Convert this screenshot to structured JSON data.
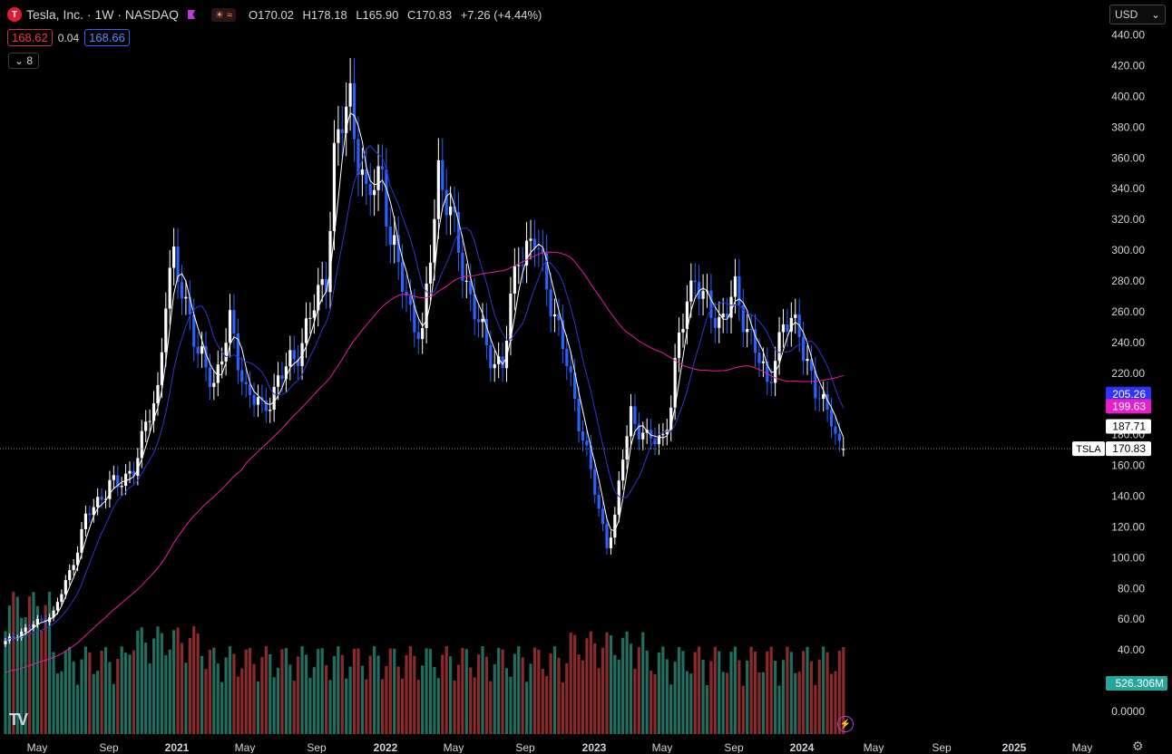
{
  "header": {
    "logo_letter": "T",
    "symbol_title": "Tesla, Inc. · 1W · NASDAQ",
    "indicator_badge": "☀ ≈",
    "ohlc": {
      "o_label": "O",
      "o": "170.02",
      "h_label": "H",
      "h": "178.18",
      "l_label": "L",
      "l": "165.90",
      "c_label": "C",
      "c": "170.83",
      "change": "+7.26 (+4.44%)"
    }
  },
  "quote": {
    "bid": "168.62",
    "spread": "0.04",
    "ask": "168.66"
  },
  "indicators_toggle": {
    "arrow": "⌄",
    "count": "8"
  },
  "currency_select": {
    "value": "USD",
    "arrow": "⌄"
  },
  "branding": {
    "tv_logo": "TV"
  },
  "icons": {
    "bolt": "bolt-icon",
    "gear": "gear-icon"
  },
  "colors": {
    "bg": "#000000",
    "up": "#ffffff",
    "down": "#2962ff",
    "vol_up": "#1f6e5f",
    "vol_down": "#8b2a2a",
    "ma_fast": "#ffffff",
    "ma_mid": "#2e35d4",
    "ma_long": "#e91e9e",
    "price_line": "#8a8a8a",
    "ma_mid_badge": "#3033ff",
    "ma_long_badge": "#e91ec8",
    "vol_badge": "#26a69a"
  },
  "chart_data": {
    "type": "candlestick",
    "interval": "1W",
    "ylim": [
      -10,
      445
    ],
    "y_ticks": [
      "440.00",
      "420.00",
      "400.00",
      "380.00",
      "360.00",
      "340.00",
      "320.00",
      "300.00",
      "280.00",
      "260.00",
      "240.00",
      "220.00",
      "200.00",
      "180.00",
      "160.00",
      "140.00",
      "120.00",
      "100.00",
      "80.00",
      "60.00",
      "40.00",
      "20.00",
      "0.0000"
    ],
    "x_ticks": [
      "May",
      "Sep",
      "2021",
      "May",
      "Sep",
      "2022",
      "May",
      "Sep",
      "2023",
      "May",
      "Sep",
      "2024",
      "May",
      "Sep",
      "2025",
      "May"
    ],
    "x_bold": [
      "2021",
      "2022",
      "2023",
      "2024",
      "2025"
    ],
    "price_range_start": "2020-04",
    "price_range_end": "2024-03",
    "close_anchors": [
      [
        0,
        45
      ],
      [
        4,
        52
      ],
      [
        8,
        58
      ],
      [
        12,
        64
      ],
      [
        16,
        90
      ],
      [
        20,
        125
      ],
      [
        24,
        140
      ],
      [
        26,
        150
      ],
      [
        28,
        145
      ],
      [
        32,
        160
      ],
      [
        34,
        175
      ],
      [
        38,
        210
      ],
      [
        40,
        270
      ],
      [
        42,
        290
      ],
      [
        46,
        260
      ],
      [
        48,
        230
      ],
      [
        52,
        215
      ],
      [
        56,
        250
      ],
      [
        60,
        210
      ],
      [
        64,
        195
      ],
      [
        68,
        215
      ],
      [
        72,
        230
      ],
      [
        76,
        255
      ],
      [
        80,
        285
      ],
      [
        82,
        360
      ],
      [
        86,
        400
      ],
      [
        90,
        330
      ],
      [
        94,
        355
      ],
      [
        96,
        305
      ],
      [
        100,
        270
      ],
      [
        104,
        240
      ],
      [
        108,
        355
      ],
      [
        112,
        310
      ],
      [
        116,
        270
      ],
      [
        120,
        235
      ],
      [
        124,
        225
      ],
      [
        128,
        300
      ],
      [
        132,
        305
      ],
      [
        136,
        270
      ],
      [
        140,
        225
      ],
      [
        144,
        180
      ],
      [
        146,
        155
      ],
      [
        148,
        130
      ],
      [
        150,
        110
      ],
      [
        152,
        125
      ],
      [
        154,
        165
      ],
      [
        156,
        195
      ],
      [
        158,
        185
      ],
      [
        160,
        175
      ],
      [
        164,
        180
      ],
      [
        166,
        200
      ],
      [
        168,
        240
      ],
      [
        170,
        270
      ],
      [
        172,
        285
      ],
      [
        174,
        265
      ],
      [
        178,
        255
      ],
      [
        182,
        270
      ],
      [
        186,
        245
      ],
      [
        190,
        210
      ],
      [
        192,
        235
      ],
      [
        194,
        250
      ],
      [
        198,
        250
      ],
      [
        202,
        205
      ],
      [
        206,
        195
      ],
      [
        208,
        170
      ],
      [
        209,
        171
      ]
    ],
    "ohlc_last": {
      "open": 170.02,
      "high": 178.18,
      "low": 165.9,
      "close": 170.83
    },
    "price_labels": [
      {
        "name": "ma_mid",
        "value": 205.26,
        "text": "205.26"
      },
      {
        "name": "ma_long",
        "value": 199.63,
        "text": "199.63"
      },
      {
        "name": "ma_fast",
        "value": 187.71,
        "text": "187.71"
      },
      {
        "name": "TSLA",
        "value": 170.83,
        "text": "170.83"
      }
    ],
    "volume_label": "526.306M",
    "series": [
      {
        "name": "TSLA",
        "kind": "candles"
      },
      {
        "name": "ma_fast",
        "kind": "line"
      },
      {
        "name": "ma_mid",
        "kind": "line"
      },
      {
        "name": "ma_long",
        "kind": "line"
      },
      {
        "name": "volume",
        "kind": "bars"
      }
    ]
  }
}
